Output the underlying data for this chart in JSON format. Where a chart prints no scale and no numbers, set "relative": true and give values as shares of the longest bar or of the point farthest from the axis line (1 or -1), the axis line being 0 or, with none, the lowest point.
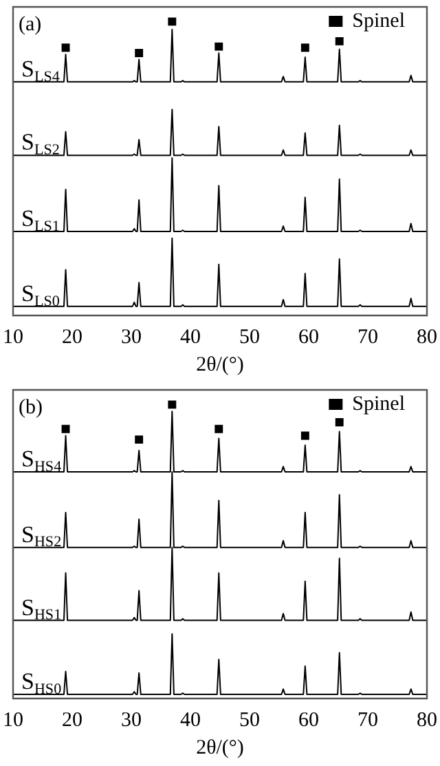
{
  "chart_data": [
    {
      "type": "line",
      "title": "(a)",
      "xlabel": "2θ/(°)",
      "relative": true,
      "xlim": [
        10,
        80
      ],
      "xticks": [
        10,
        20,
        30,
        40,
        50,
        60,
        70,
        80
      ],
      "tick_labels": "x",
      "grid": false,
      "legend": "top right",
      "x": [
        10,
        18.6,
        18.9,
        19.2,
        30.2,
        30.5,
        30.8,
        31.0,
        31.3,
        31.6,
        36.6,
        36.9,
        37.2,
        38.4,
        38.7,
        39.0,
        44.5,
        44.8,
        45.1,
        55.4,
        55.7,
        56.0,
        59.1,
        59.4,
        59.7,
        64.9,
        65.2,
        65.5,
        68.4,
        68.7,
        69.0,
        77.0,
        77.3,
        77.6,
        80
      ],
      "series": [
        {
          "name": "S$_{LS4}$",
          "color": "#000000",
          "marker": "none",
          "values": [
            0.795,
            0.795,
            0.888,
            0.795,
            0.795,
            0.799,
            0.795,
            0.795,
            0.871,
            0.795,
            0.795,
            0.973,
            0.795,
            0.795,
            0.799,
            0.795,
            0.795,
            0.893,
            0.795,
            0.795,
            0.813,
            0.795,
            0.795,
            0.879,
            0.795,
            0.795,
            0.906,
            0.795,
            0.795,
            0.799,
            0.795,
            0.795,
            0.817,
            0.795,
            0.795
          ]
        },
        {
          "name": "S$_{LS2}$",
          "color": "#000000",
          "marker": "none",
          "values": [
            0.545,
            0.545,
            0.625,
            0.545,
            0.545,
            0.549,
            0.545,
            0.545,
            0.598,
            0.545,
            0.545,
            0.701,
            0.545,
            0.545,
            0.549,
            0.545,
            0.545,
            0.643,
            0.545,
            0.545,
            0.563,
            0.545,
            0.545,
            0.621,
            0.545,
            0.545,
            0.647,
            0.545,
            0.545,
            0.549,
            0.545,
            0.545,
            0.563,
            0.545,
            0.545
          ]
        },
        {
          "name": "S$_{LS1}$",
          "color": "#000000",
          "marker": "none",
          "values": [
            0.286,
            0.286,
            0.429,
            0.286,
            0.286,
            0.295,
            0.286,
            0.286,
            0.393,
            0.286,
            0.286,
            0.536,
            0.286,
            0.286,
            0.29,
            0.286,
            0.286,
            0.442,
            0.286,
            0.286,
            0.304,
            0.286,
            0.286,
            0.402,
            0.286,
            0.286,
            0.464,
            0.286,
            0.286,
            0.29,
            0.286,
            0.286,
            0.313,
            0.286,
            0.286
          ]
        },
        {
          "name": "S$_{LS0}$",
          "color": "#000000",
          "marker": "none",
          "values": [
            0.031,
            0.031,
            0.156,
            0.031,
            0.031,
            0.045,
            0.031,
            0.031,
            0.112,
            0.031,
            0.031,
            0.263,
            0.031,
            0.031,
            0.036,
            0.031,
            0.031,
            0.174,
            0.031,
            0.031,
            0.054,
            0.031,
            0.031,
            0.143,
            0.031,
            0.031,
            0.192,
            0.031,
            0.031,
            0.036,
            0.031,
            0.031,
            0.058,
            0.031,
            0.031
          ]
        },
        {
          "name": "Spinel",
          "type": "scatter",
          "color": "#000000",
          "marker": "square",
          "x": [
            18.9,
            31.3,
            36.9,
            44.8,
            59.4,
            65.2
          ],
          "values": [
            0.911,
            0.893,
            1,
            0.915,
            0.911,
            0.933
          ]
        }
      ]
    },
    {
      "type": "line",
      "title": "(b)",
      "xlabel": "2θ/(°)",
      "relative": true,
      "xlim": [
        10,
        80
      ],
      "xticks": [
        10,
        20,
        30,
        40,
        50,
        60,
        70,
        80
      ],
      "tick_labels": "x",
      "grid": false,
      "legend": "top right",
      "x": [
        10,
        18.6,
        18.9,
        19.2,
        30.2,
        30.5,
        30.8,
        31.0,
        31.3,
        31.6,
        36.6,
        36.9,
        37.2,
        38.4,
        38.7,
        39.0,
        44.5,
        44.8,
        45.1,
        55.4,
        55.7,
        56.0,
        59.1,
        59.4,
        59.7,
        64.9,
        65.2,
        65.5,
        68.4,
        68.7,
        69.0,
        77.0,
        77.3,
        77.6,
        80
      ],
      "series": [
        {
          "name": "S$_{HS4}$",
          "color": "#000000",
          "marker": "none",
          "values": [
            0.771,
            0.771,
            0.894,
            0.771,
            0.771,
            0.775,
            0.771,
            0.771,
            0.844,
            0.771,
            0.771,
            0.977,
            0.771,
            0.771,
            0.775,
            0.771,
            0.771,
            0.885,
            0.771,
            0.771,
            0.789,
            0.771,
            0.771,
            0.862,
            0.771,
            0.771,
            0.908,
            0.771,
            0.771,
            0.775,
            0.771,
            0.771,
            0.789,
            0.771,
            0.771
          ]
        },
        {
          "name": "S$_{HS2}$",
          "color": "#000000",
          "marker": "none",
          "values": [
            0.514,
            0.514,
            0.633,
            0.514,
            0.514,
            0.518,
            0.514,
            0.514,
            0.61,
            0.514,
            0.514,
            0.771,
            0.514,
            0.514,
            0.518,
            0.514,
            0.514,
            0.674,
            0.514,
            0.514,
            0.537,
            0.514,
            0.514,
            0.633,
            0.514,
            0.514,
            0.693,
            0.514,
            0.514,
            0.518,
            0.514,
            0.514,
            0.537,
            0.514,
            0.514
          ]
        },
        {
          "name": "S$_{HS1}$",
          "color": "#000000",
          "marker": "none",
          "values": [
            0.266,
            0.266,
            0.427,
            0.266,
            0.266,
            0.275,
            0.266,
            0.266,
            0.367,
            0.266,
            0.266,
            0.514,
            0.266,
            0.266,
            0.271,
            0.266,
            0.266,
            0.427,
            0.266,
            0.266,
            0.289,
            0.266,
            0.266,
            0.399,
            0.266,
            0.266,
            0.477,
            0.266,
            0.266,
            0.271,
            0.266,
            0.266,
            0.294,
            0.266,
            0.266
          ]
        },
        {
          "name": "S$_{HS0}$",
          "color": "#000000",
          "marker": "none",
          "values": [
            0.014,
            0.014,
            0.092,
            0.014,
            0.014,
            0.023,
            0.014,
            0.014,
            0.087,
            0.014,
            0.014,
            0.22,
            0.014,
            0.014,
            0.018,
            0.014,
            0.014,
            0.133,
            0.014,
            0.014,
            0.032,
            0.014,
            0.014,
            0.11,
            0.014,
            0.014,
            0.156,
            0.014,
            0.014,
            0.018,
            0.014,
            0.014,
            0.032,
            0.014,
            0.014
          ]
        },
        {
          "name": "Spinel",
          "type": "scatter",
          "color": "#000000",
          "marker": "square",
          "x": [
            18.9,
            31.3,
            36.9,
            44.8,
            59.4,
            65.2
          ],
          "values": [
            0.917,
            0.881,
            1,
            0.917,
            0.894,
            0.94
          ]
        }
      ]
    }
  ]
}
